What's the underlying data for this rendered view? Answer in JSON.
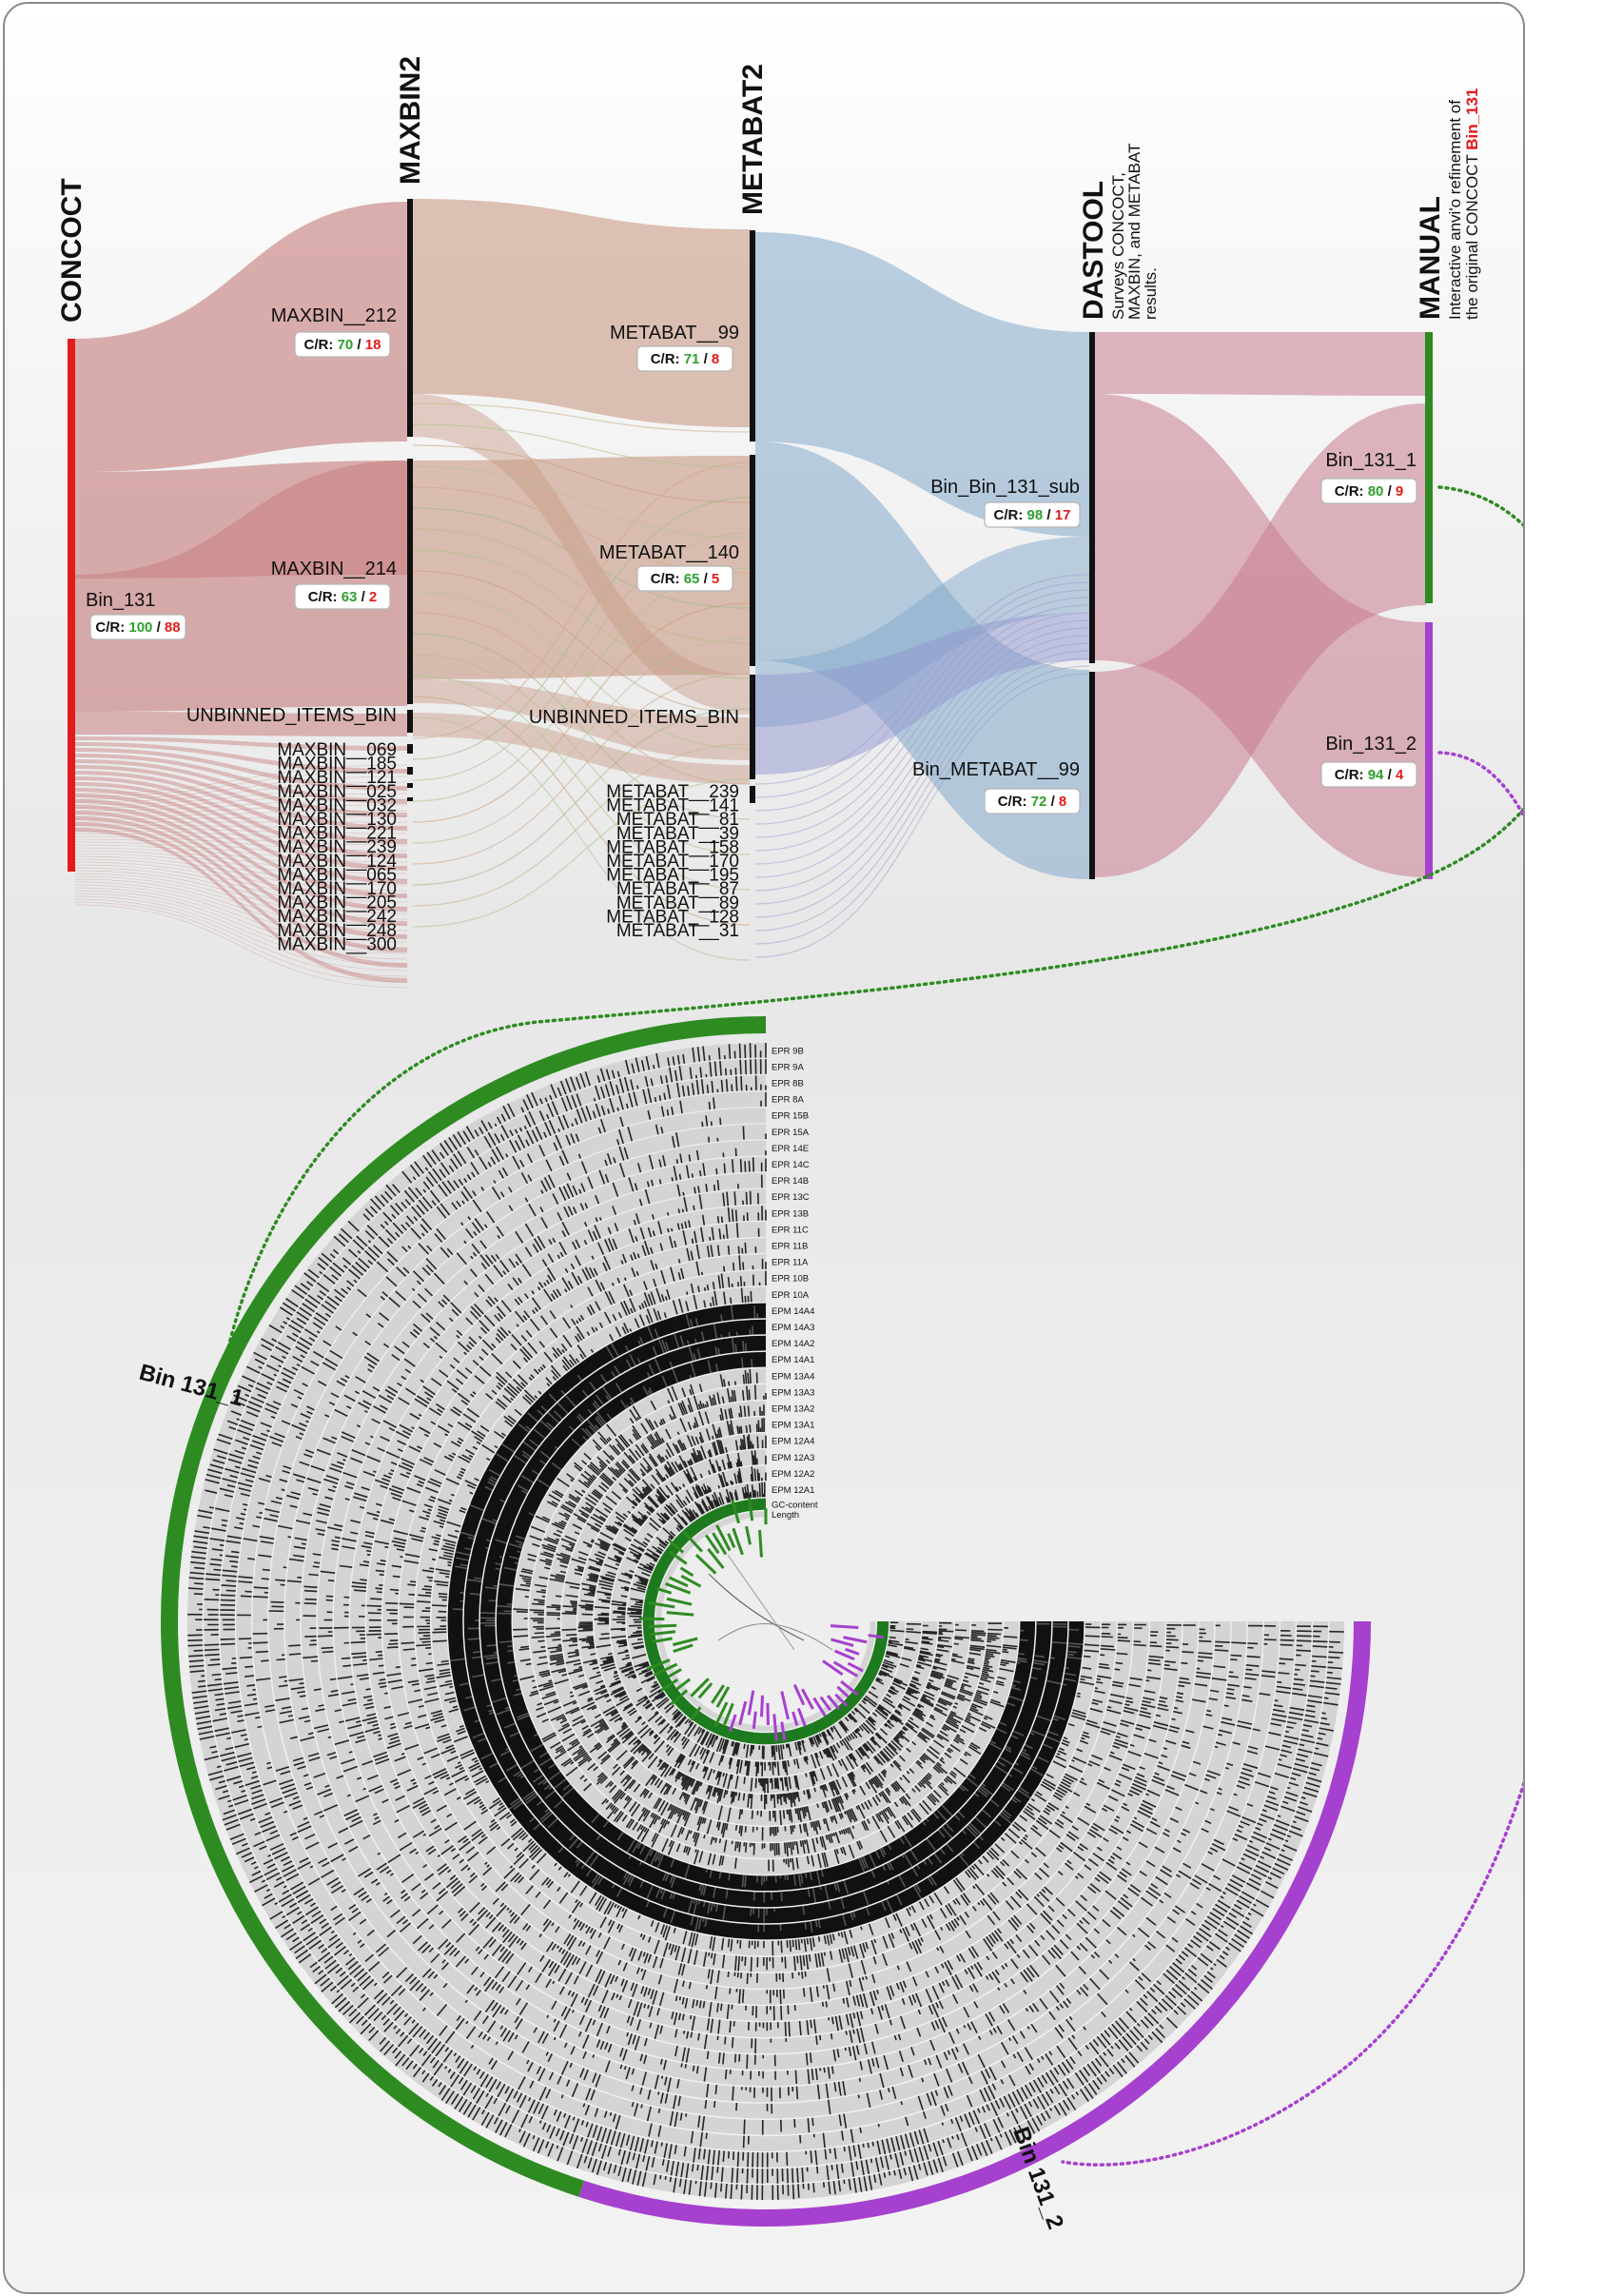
{
  "stages": [
    {
      "id": "concoct",
      "title": "CONCOCT",
      "color": "#e41a1a"
    },
    {
      "id": "maxbin",
      "title": "MAXBIN2",
      "color": "#111111"
    },
    {
      "id": "metabat",
      "title": "METABAT2",
      "color": "#111111"
    },
    {
      "id": "dastool",
      "title": "DASTOOL",
      "color": "#111111",
      "subtitle": [
        "Surveys CONCOCT,",
        "MAXBIN, and METABAT",
        "results."
      ]
    },
    {
      "id": "manual",
      "title": "MANUAL",
      "color": "#111111",
      "subtitle_lines": [
        "Interactive anvi'o refinement of",
        "the original CONCOCT "
      ],
      "subtitle_highlight": "Bin_131"
    }
  ],
  "concoct": {
    "bin": "Bin_131",
    "completion": "100",
    "redundancy": "88"
  },
  "maxbin": {
    "major": [
      {
        "name": "MAXBIN__212",
        "completion": "70",
        "redundancy": "18"
      },
      {
        "name": "MAXBIN__214",
        "completion": "63",
        "redundancy": "2"
      }
    ],
    "unbinned": "UNBINNED_ITEMS_BIN",
    "minor": [
      "MAXBIN__069",
      "MAXBIN__185",
      "MAXBIN__121",
      "MAXBIN__025",
      "MAXBIN__032",
      "MAXBIN__130",
      "MAXBIN__221",
      "MAXBIN__239",
      "MAXBIN__124",
      "MAXBIN__065",
      "MAXBIN__170",
      "MAXBIN__205",
      "MAXBIN__242",
      "MAXBIN__248",
      "MAXBIN__300"
    ]
  },
  "metabat": {
    "major": [
      {
        "name": "METABAT__99",
        "completion": "71",
        "redundancy": "8"
      },
      {
        "name": "METABAT__140",
        "completion": "65",
        "redundancy": "5"
      }
    ],
    "unbinned": "UNBINNED_ITEMS_BIN",
    "minor": [
      "METABAT__239",
      "METABAT__141",
      "METABAT__81",
      "METABAT__39",
      "METABAT__158",
      "METABAT__170",
      "METABAT__195",
      "METABAT__87",
      "METABAT__89",
      "METABAT__128",
      "METABAT__31"
    ]
  },
  "dastool": [
    {
      "name": "Bin_Bin_131_sub",
      "completion": "98",
      "redundancy": "17"
    },
    {
      "name": "Bin_METABAT__99",
      "completion": "72",
      "redundancy": "8"
    }
  ],
  "manual": [
    {
      "name": "Bin_131_1",
      "completion": "80",
      "redundancy": "9",
      "color": "#2a8a2a"
    },
    {
      "name": "Bin_131_2",
      "completion": "94",
      "redundancy": "4",
      "color": "#a83fd0"
    }
  ],
  "cr_prefix": "C/R:",
  "cr_sep": "/",
  "colors": {
    "concoct_flow": "#c77e7e",
    "maxbin_flow": "#c89a84",
    "metabat_flow": "#84aacb",
    "dastool_flow": "#c87c8e",
    "green": "#2e8b22",
    "purple": "#a640cf",
    "completion": "#2ea02e",
    "redundancy": "#e41a1a"
  },
  "circular": {
    "layers": [
      "EPR 9B",
      "EPR 9A",
      "EPR 8B",
      "EPR 8A",
      "EPR 15B",
      "EPR 15A",
      "EPR 14E",
      "EPR 14C",
      "EPR 14B",
      "EPR 13C",
      "EPR 13B",
      "EPR 11C",
      "EPR 11B",
      "EPR 11A",
      "EPR 10B",
      "EPR 10A",
      "EPM 14A4",
      "EPM 14A3",
      "EPM 14A2",
      "EPM 14A1",
      "EPM 13A4",
      "EPM 13A3",
      "EPM 13A2",
      "EPM 13A1",
      "EPM 12A4",
      "EPM 12A3",
      "EPM 12A2",
      "EPM 12A1",
      "GC-content",
      "Length"
    ],
    "bin_labels": [
      "Bin 131_1",
      "Bin 131_2"
    ]
  }
}
